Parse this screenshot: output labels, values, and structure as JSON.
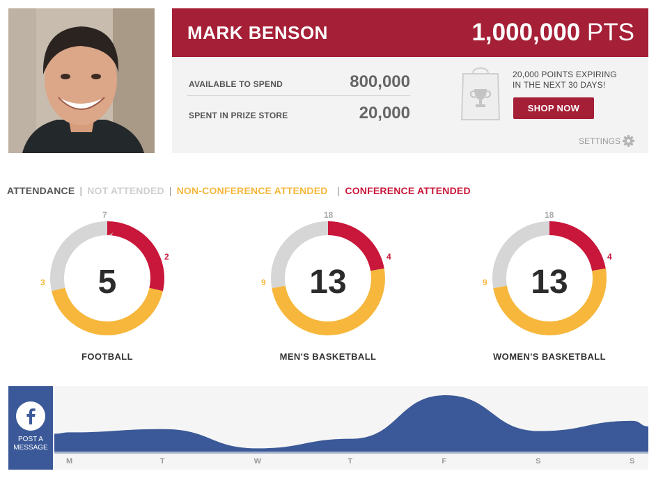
{
  "profile": {
    "name": "MARK BENSON",
    "points_value": "1,000,000",
    "points_unit": "PTS"
  },
  "stats": {
    "available_label": "AVAILABLE TO SPEND",
    "available_value": "800,000",
    "spent_label": "SPENT IN PRIZE STORE",
    "spent_value": "20,000"
  },
  "promo": {
    "expire_line1": "20,000 POINTS EXPIRING",
    "expire_line2": "IN THE NEXT 30 DAYS!",
    "shop_label": "SHOP NOW",
    "bag_icon": "trophy-bag-icon"
  },
  "settings": {
    "label": "SETTINGS",
    "icon": "gear-icon"
  },
  "legend": {
    "attendance": "ATTENDANCE",
    "not_attended": "NOT ATTENDED",
    "non_conference": "NON-CONFERENCE ATTENDED",
    "conference": "CONFERENCE ATTENDED",
    "separator": "|"
  },
  "colors": {
    "brand": "#a51f37",
    "not_attended": "#d6d6d6",
    "non_conference": "#f6b73c",
    "conference": "#c8173a",
    "facebook": "#3b5998"
  },
  "donuts": [
    {
      "title": "FOOTBALL",
      "center": "5",
      "total": "7",
      "conference": "2",
      "non_conference": "3",
      "total_n": 7,
      "conf_n": 2,
      "non_n": 3
    },
    {
      "title": "MEN'S BASKETBALL",
      "center": "13",
      "total": "18",
      "conference": "4",
      "non_conference": "9",
      "total_n": 18,
      "conf_n": 4,
      "non_n": 9
    },
    {
      "title": "WOMEN'S BASKETBALL",
      "center": "13",
      "total": "18",
      "conference": "4",
      "non_conference": "9",
      "total_n": 18,
      "conf_n": 4,
      "non_n": 9
    }
  ],
  "social": {
    "icon": "facebook-icon",
    "post_line1": "POST A",
    "post_line2": "MESSAGE"
  },
  "chart_data": {
    "type": "area",
    "categories": [
      "M",
      "T",
      "W",
      "T",
      "F",
      "S",
      "S"
    ],
    "series": [
      {
        "values": [
          30,
          35,
          5,
          20,
          88,
          32,
          48
        ]
      }
    ],
    "ylim": [
      0,
      100
    ],
    "grid": false,
    "color": "#3b5998"
  }
}
